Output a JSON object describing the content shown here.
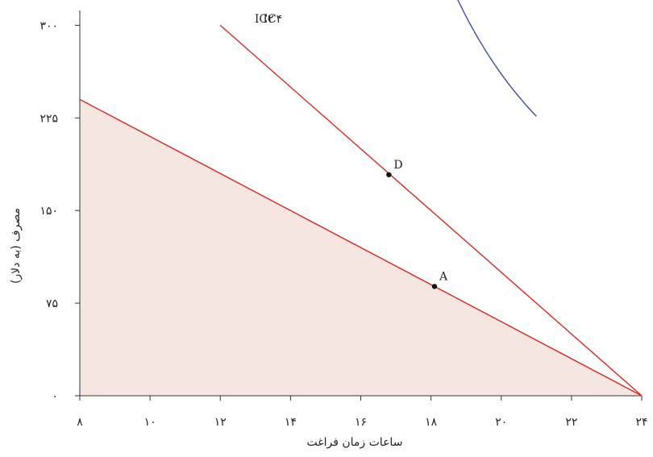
{
  "chart_data": {
    "type": "line",
    "xlabel": "ساعات زمان فراغت",
    "ylabel": "مصرف (به دلار)",
    "xlim": [
      8,
      24
    ],
    "ylim": [
      0,
      312
    ],
    "x_ticks": [
      {
        "value": 8,
        "label": "۸"
      },
      {
        "value": 10,
        "label": "۱۰"
      },
      {
        "value": 12,
        "label": "۱۲"
      },
      {
        "value": 14,
        "label": "۱۴"
      },
      {
        "value": 16,
        "label": "۱۶"
      },
      {
        "value": 18,
        "label": "۱۸"
      },
      {
        "value": 20,
        "label": "۲۰"
      },
      {
        "value": 22,
        "label": "۲۲"
      },
      {
        "value": 24,
        "label": "۲۴"
      }
    ],
    "y_ticks": [
      {
        "value": 0,
        "label": "۰"
      },
      {
        "value": 75,
        "label": "۷۵"
      },
      {
        "value": 150,
        "label": "۱۵۰"
      },
      {
        "value": 225,
        "label": "۲۲۵"
      },
      {
        "value": 300,
        "label": "۳۰۰"
      }
    ],
    "grid": false,
    "feasible_region": {
      "points": [
        [
          8,
          240
        ],
        [
          24,
          0
        ],
        [
          8,
          0
        ]
      ],
      "color": "#f6e6e1"
    },
    "series": [
      {
        "kind": "budget-line",
        "color": "#d9291c",
        "points": [
          [
            8,
            240
          ],
          [
            24,
            0
          ]
        ]
      },
      {
        "kind": "budget-line",
        "color": "#d9291c",
        "points": [
          [
            12,
            300
          ],
          [
            24,
            0
          ]
        ]
      },
      {
        "name": "IC۲",
        "kind": "indifference-curve",
        "color": "#3c4fa8",
        "k": 1020,
        "x0": 13.8,
        "x_range": [
          13.8,
          20.35
        ]
      },
      {
        "name": "IC۴",
        "kind": "indifference-curve",
        "color": "#3c4fa8",
        "k": 1720,
        "x0": 13.4,
        "x_range": [
          14.04,
          21.0
        ]
      }
    ],
    "points": [
      {
        "label": "A",
        "x": 18.1,
        "y": 88.5
      },
      {
        "label": "D",
        "x": 16.8,
        "y": 179
      }
    ],
    "colors": {
      "axis": "#333333",
      "budget": "#d9291c",
      "curve": "#3c4fa8",
      "fill": "#f6e6e1"
    }
  }
}
